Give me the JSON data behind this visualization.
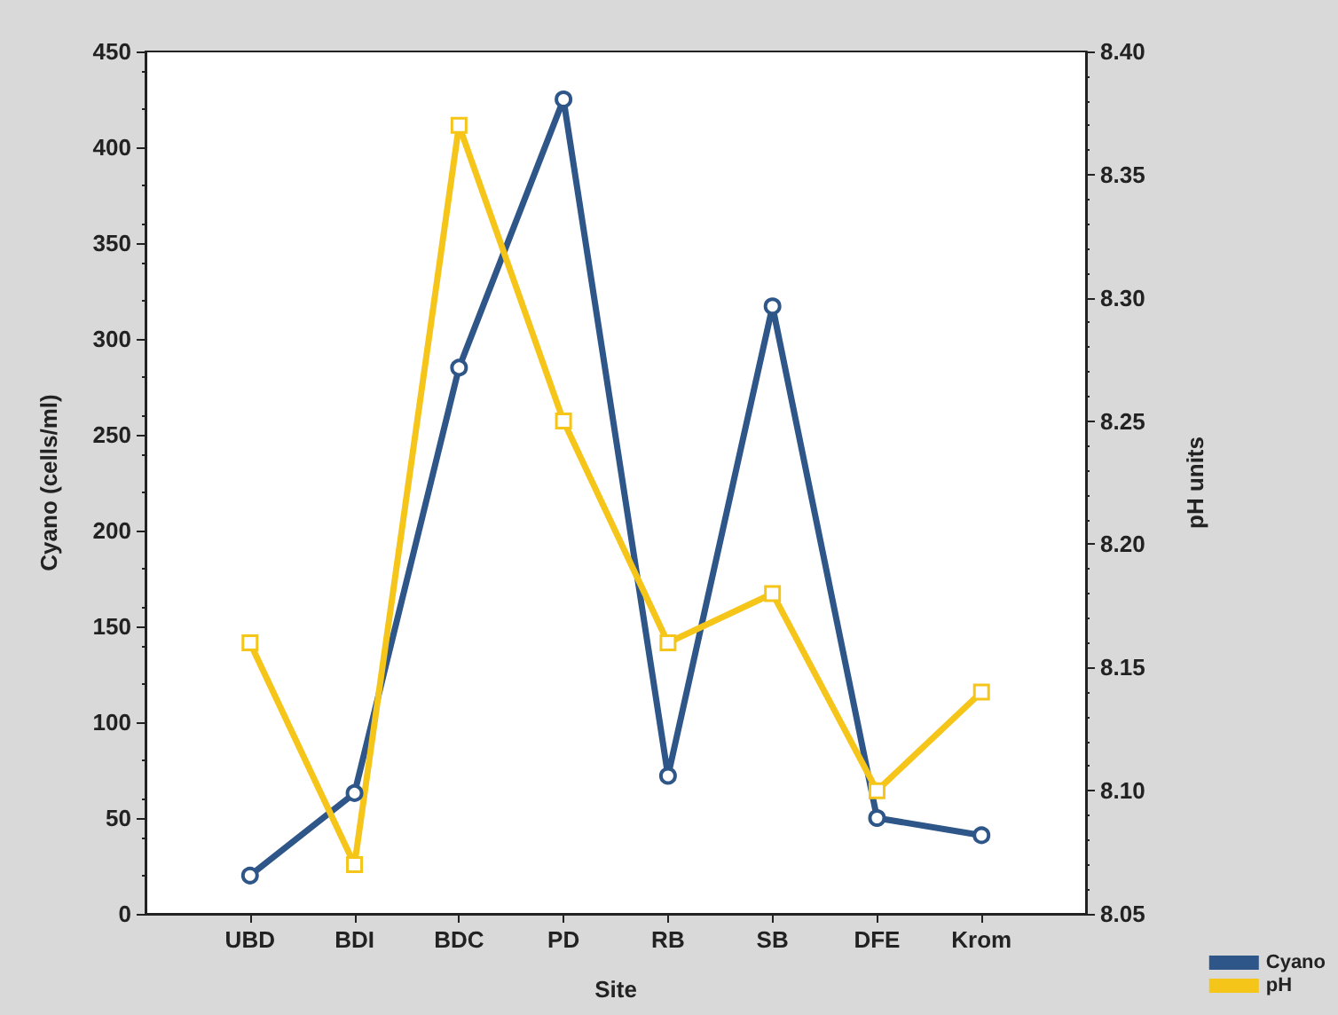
{
  "chart_data": {
    "type": "line",
    "xlabel": "Site",
    "ylabel": "Cyano (cells/ml)",
    "y2label": "pH units",
    "categories": [
      "UBD",
      "BDI",
      "BDC",
      "PD",
      "RB",
      "SB",
      "DFE",
      "Krom"
    ],
    "series": [
      {
        "name": "Cyano",
        "color": "#2e5688",
        "marker": "circle",
        "values": [
          20,
          63,
          285,
          425,
          72,
          317,
          50,
          41
        ]
      },
      {
        "name": "pH",
        "color": "#f5c51a",
        "marker": "square",
        "axis": "y2",
        "values": [
          8.16,
          8.07,
          8.37,
          8.25,
          8.16,
          8.18,
          8.1,
          8.14
        ]
      }
    ],
    "ylim": [
      0,
      450
    ],
    "yticks": [
      0,
      50,
      100,
      150,
      200,
      250,
      300,
      350,
      400,
      450
    ],
    "y2lim": [
      8.05,
      8.4
    ],
    "y2ticks": [
      {
        "value": 8.05,
        "label": "8.05"
      },
      {
        "value": 8.1,
        "label": "8.10"
      },
      {
        "value": 8.15,
        "label": "8.15"
      },
      {
        "value": 8.2,
        "label": "8.20"
      },
      {
        "value": 8.25,
        "label": "8.25"
      },
      {
        "value": 8.3,
        "label": "8.30"
      },
      {
        "value": 8.35,
        "label": "8.35"
      },
      {
        "value": 8.4,
        "label": "8.40"
      }
    ],
    "grid": false,
    "legend": "bottom right",
    "line_style": "solid"
  }
}
